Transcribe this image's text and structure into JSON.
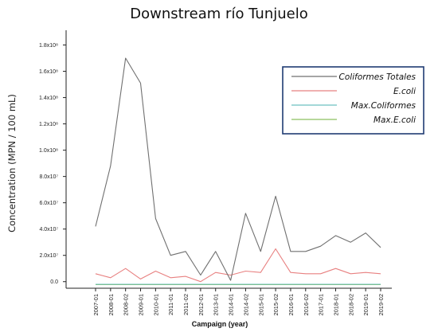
{
  "chart_data": {
    "type": "line",
    "title": "Downstream río Tunjuelo",
    "ylabel": "Concentration (MPN / 100 mL)",
    "xlabel": "Campaign (year)",
    "x": [
      "2007-01",
      "2008-01",
      "2008-02",
      "2009-01",
      "2010-01",
      "2011-01",
      "2011-02",
      "2012-01",
      "2013-01",
      "2014-01",
      "2014-02",
      "2015-01",
      "2015-02",
      "2016-01",
      "2016-02",
      "2017-01",
      "2018-01",
      "2018-02",
      "2019-01",
      "2019-02"
    ],
    "ylim": [
      -5000000,
      190000000
    ],
    "yticks": [
      0,
      20000000,
      40000000,
      60000000,
      80000000,
      100000000,
      120000000,
      140000000,
      160000000,
      180000000
    ],
    "ytick_labels": [
      "0.0",
      "2.0x10⁷",
      "4.0x10⁷",
      "6.0x10⁷",
      "8.0x10⁷",
      "1.0x10⁸",
      "1.2x10⁸",
      "1.4x10⁸",
      "1.6x10⁸",
      "1.8x10⁸"
    ],
    "series": [
      {
        "name": "Coliformes Totales",
        "color": "#707070",
        "values": [
          42000000,
          88000000,
          170000000,
          151000000,
          48000000,
          20000000,
          23000000,
          5000000,
          23000000,
          1000000,
          52000000,
          23000000,
          65000000,
          23000000,
          23000000,
          27000000,
          35000000,
          30000000,
          37000000,
          26000000
        ]
      },
      {
        "name": "E.coli",
        "color": "#e88080",
        "values": [
          6000000,
          3000000,
          10000000,
          2000000,
          8000000,
          3000000,
          4000000,
          0,
          7000000,
          5000000,
          8000000,
          7000000,
          25000000,
          7000000,
          6000000,
          6000000,
          10000000,
          6000000,
          7000000,
          6000000
        ]
      },
      {
        "name": "Max.Coliformes",
        "color": "#6cc0c0",
        "values": [
          -2000000,
          -2000000,
          -2000000,
          -2000000,
          -2000000,
          -2000000,
          -2000000,
          -2000000,
          -2000000,
          -2000000,
          -2000000,
          -2000000,
          -2000000,
          -2000000,
          -2000000,
          -2000000,
          -2000000,
          -2000000,
          -2000000,
          -2000000
        ]
      },
      {
        "name": "Max.E.coli",
        "color": "#8cc060",
        "values": [
          -2200000,
          -2200000,
          -2200000,
          -2200000,
          -2200000,
          -2200000,
          -2200000,
          -2200000,
          -2200000,
          -2200000,
          -2200000,
          -2200000,
          -2200000,
          -2200000,
          -2200000,
          -2200000,
          -2200000,
          -2200000,
          -2200000,
          -2200000
        ]
      }
    ],
    "legend_position": "top-right",
    "grid": false
  }
}
